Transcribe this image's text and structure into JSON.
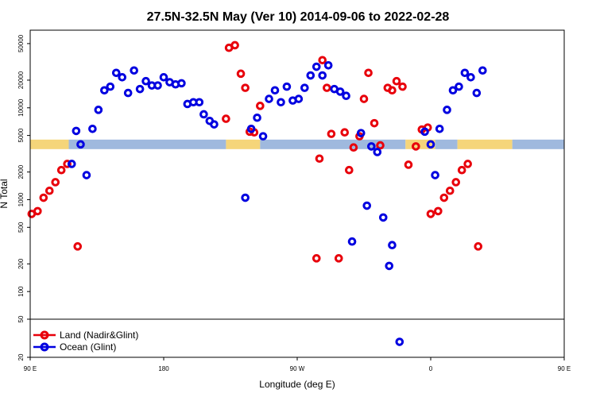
{
  "chart_data": {
    "type": "scatter",
    "title": "27.5N-32.5N May (Ver 10)   2014-09-06 to 2022-02-28",
    "xlabel": "Longitude (deg E)",
    "ylabel": "N Total",
    "yscale": "log",
    "xlim": [
      90,
      450
    ],
    "ylim": [
      20,
      70000
    ],
    "x_ticks": [
      {
        "value": 90,
        "label": "90 E"
      },
      {
        "value": 180,
        "label": "180"
      },
      {
        "value": 270,
        "label": "90 W"
      },
      {
        "value": 360,
        "label": "0"
      },
      {
        "value": 450,
        "label": "90 E"
      },
      {
        "value": 540,
        "label": "180"
      }
    ],
    "y_ticks": [
      {
        "value": 20,
        "label": "20"
      },
      {
        "value": 50,
        "label": "50"
      },
      {
        "value": 100,
        "label": "100"
      },
      {
        "value": 200,
        "label": "200"
      },
      {
        "value": 500,
        "label": "500"
      },
      {
        "value": 1000,
        "label": "1000"
      },
      {
        "value": 2000,
        "label": "2000"
      },
      {
        "value": 5000,
        "label": "5000"
      },
      {
        "value": 10000,
        "label": "10000"
      },
      {
        "value": 20000,
        "label": "20000"
      },
      {
        "value": 50000,
        "label": "50000"
      }
    ],
    "y_break": 50,
    "surface_band": {
      "y": 4000,
      "segments": [
        {
          "x0": 90,
          "x1": 116,
          "color": "#f5d57a"
        },
        {
          "x0": 116,
          "x1": 222,
          "color": "#9fb9de"
        },
        {
          "x0": 222,
          "x1": 245,
          "color": "#f5d57a"
        },
        {
          "x0": 245,
          "x1": 343,
          "color": "#9fb9de"
        },
        {
          "x0": 343,
          "x1": 363,
          "color": "#f5d57a"
        },
        {
          "x0": 363,
          "x1": 378,
          "color": "#9fb9de"
        },
        {
          "x0": 378,
          "x1": 415,
          "color": "#f5d57a"
        },
        {
          "x0": 415,
          "x1": 450,
          "color": "#9fb9de"
        }
      ]
    },
    "legend_position": "bottom-left",
    "series": [
      {
        "name": "Land (Nadir&Glint)",
        "color": "#e8000b",
        "points": [
          [
            91,
            700
          ],
          [
            95,
            750
          ],
          [
            99,
            1050
          ],
          [
            103,
            1250
          ],
          [
            107,
            1550
          ],
          [
            111,
            2100
          ],
          [
            115,
            2450
          ],
          [
            122,
            310
          ],
          [
            222,
            7600
          ],
          [
            224,
            45000
          ],
          [
            228,
            48000
          ],
          [
            232,
            23500
          ],
          [
            235,
            16500
          ],
          [
            238,
            5500
          ],
          [
            241,
            5400
          ],
          [
            245,
            10500
          ],
          [
            283,
            230
          ],
          [
            285,
            2800
          ],
          [
            287,
            33000
          ],
          [
            290,
            16500
          ],
          [
            293,
            5200
          ],
          [
            298,
            230
          ],
          [
            302,
            5400
          ],
          [
            305,
            2100
          ],
          [
            308,
            3700
          ],
          [
            312,
            4900
          ],
          [
            315,
            12500
          ],
          [
            318,
            24000
          ],
          [
            322,
            6800
          ],
          [
            326,
            3900
          ],
          [
            331,
            16500
          ],
          [
            334,
            15500
          ],
          [
            337,
            19500
          ],
          [
            341,
            17000
          ],
          [
            345,
            2400
          ],
          [
            350,
            3800
          ],
          [
            354,
            5800
          ],
          [
            358,
            6100
          ],
          [
            360,
            700
          ],
          [
            365,
            750
          ],
          [
            369,
            1050
          ],
          [
            373,
            1250
          ],
          [
            377,
            1550
          ],
          [
            381,
            2100
          ],
          [
            385,
            2450
          ],
          [
            392,
            310
          ]
        ]
      },
      {
        "name": "Ocean (Glint)",
        "color": "#0000e0",
        "points": [
          [
            118,
            2450
          ],
          [
            121,
            5600
          ],
          [
            124,
            4000
          ],
          [
            128,
            1850
          ],
          [
            132,
            5900
          ],
          [
            136,
            9500
          ],
          [
            140,
            15500
          ],
          [
            144,
            17000
          ],
          [
            148,
            24000
          ],
          [
            152,
            21500
          ],
          [
            156,
            14500
          ],
          [
            160,
            25500
          ],
          [
            164,
            16000
          ],
          [
            168,
            19500
          ],
          [
            172,
            17500
          ],
          [
            176,
            17500
          ],
          [
            180,
            21500
          ],
          [
            184,
            19000
          ],
          [
            188,
            18000
          ],
          [
            192,
            18500
          ],
          [
            196,
            11000
          ],
          [
            200,
            11500
          ],
          [
            204,
            11500
          ],
          [
            207,
            8500
          ],
          [
            211,
            7200
          ],
          [
            214,
            6600
          ],
          [
            235,
            1050
          ],
          [
            239,
            5900
          ],
          [
            243,
            7800
          ],
          [
            247,
            4900
          ],
          [
            251,
            12500
          ],
          [
            255,
            15500
          ],
          [
            259,
            11500
          ],
          [
            263,
            17000
          ],
          [
            267,
            12000
          ],
          [
            271,
            12500
          ],
          [
            275,
            16500
          ],
          [
            279,
            22500
          ],
          [
            283,
            28000
          ],
          [
            287,
            22500
          ],
          [
            291,
            29000
          ],
          [
            295,
            16000
          ],
          [
            299,
            15000
          ],
          [
            303,
            13500
          ],
          [
            307,
            350
          ],
          [
            313,
            5300
          ],
          [
            317,
            860
          ],
          [
            320,
            3800
          ],
          [
            324,
            3300
          ],
          [
            328,
            640
          ],
          [
            332,
            190
          ],
          [
            334,
            320
          ],
          [
            339,
            29
          ],
          [
            356,
            5500
          ],
          [
            360,
            4000
          ],
          [
            363,
            1850
          ],
          [
            366,
            5900
          ],
          [
            371,
            9500
          ],
          [
            375,
            15500
          ],
          [
            379,
            17000
          ],
          [
            383,
            24000
          ],
          [
            387,
            21500
          ],
          [
            391,
            14500
          ],
          [
            395,
            25500
          ]
        ]
      }
    ]
  }
}
